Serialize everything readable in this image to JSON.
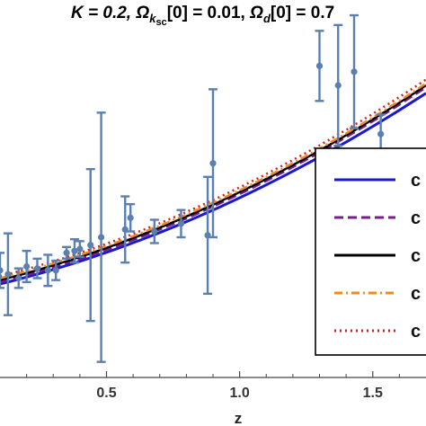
{
  "chart_data": {
    "type": "scatter",
    "title": {
      "k_part": "K = 0.2, ",
      "omega_k_symbol": "Ω",
      "omega_k_sub": "k",
      "omega_k_subsub": "sc",
      "omega_k_value": "[0] = 0.01, ",
      "omega_d_symbol": "Ω",
      "omega_d_sub": "d",
      "omega_d_value": "[0] = 0.7"
    },
    "xlabel": "z",
    "ylabel": "",
    "xlim": [
      0.1,
      1.7
    ],
    "ylim": [
      0.55,
      2.35
    ],
    "x_ticks": [
      {
        "value": 0.5,
        "label": "0.5"
      },
      {
        "value": 1.0,
        "label": "1.0"
      },
      {
        "value": 1.5,
        "label": "1.5"
      }
    ],
    "grid": false,
    "legend_position": "right",
    "marker_color": "#5b7fae",
    "points": [
      {
        "x": 0.1,
        "y": 1.1,
        "err": 0.09
      },
      {
        "x": 0.13,
        "y": 1.08,
        "err": 0.21
      },
      {
        "x": 0.17,
        "y": 1.06,
        "err": 0.05
      },
      {
        "x": 0.2,
        "y": 1.12,
        "err": 0.08
      },
      {
        "x": 0.24,
        "y": 1.11,
        "err": 0.05
      },
      {
        "x": 0.28,
        "y": 1.1,
        "err": 0.08
      },
      {
        "x": 0.31,
        "y": 1.1,
        "err": 0.05
      },
      {
        "x": 0.35,
        "y": 1.19,
        "err": 0.03
      },
      {
        "x": 0.38,
        "y": 1.2,
        "err": 0.06
      },
      {
        "x": 0.4,
        "y": 1.21,
        "err": 0.04
      },
      {
        "x": 0.44,
        "y": 1.23,
        "err": 0.39
      },
      {
        "x": 0.48,
        "y": 1.27,
        "err": 0.64
      },
      {
        "x": 0.57,
        "y": 1.31,
        "err": 0.17
      },
      {
        "x": 0.59,
        "y": 1.37,
        "err": 0.07
      },
      {
        "x": 0.68,
        "y": 1.3,
        "err": 0.06
      },
      {
        "x": 0.78,
        "y": 1.34,
        "err": 0.07
      },
      {
        "x": 0.88,
        "y": 1.28,
        "err": 0.3
      },
      {
        "x": 0.9,
        "y": 1.65,
        "err": 0.38
      },
      {
        "x": 1.3,
        "y": 2.15,
        "err": 0.18
      },
      {
        "x": 1.37,
        "y": 2.05,
        "err": 0.31
      },
      {
        "x": 1.43,
        "y": 2.12,
        "err": 0.29
      },
      {
        "x": 1.53,
        "y": 1.8,
        "err": 0.1
      }
    ],
    "series": [
      {
        "color": "#1a1acc",
        "dash": "solid",
        "y_at_x0": 1.03,
        "y_at_x1": 2.01
      },
      {
        "color": "#7a1e8f",
        "dash": "dashed",
        "y_at_x0": 1.04,
        "y_at_x1": 2.04
      },
      {
        "color": "#000000",
        "dash": "solid",
        "y_at_x0": 1.05,
        "y_at_x1": 2.05
      },
      {
        "color": "#f08c1a",
        "dash": "dashdot",
        "y_at_x0": 1.06,
        "y_at_x1": 2.06
      },
      {
        "color": "#d62020",
        "dash": "dotted",
        "y_at_x0": 1.07,
        "y_at_x1": 2.08
      }
    ],
    "legend_labels": [
      "c",
      "c",
      "c",
      "c",
      "c"
    ]
  }
}
